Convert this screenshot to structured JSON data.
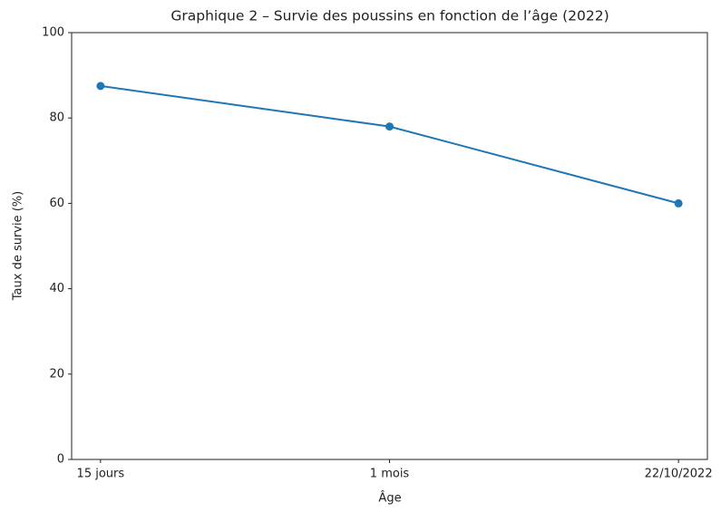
{
  "chart_data": {
    "type": "line",
    "title": "Graphique 2 – Survie des poussins en fonction de l’âge (2022)",
    "x_label": "Âge",
    "y_label": "Taux de survie (%)",
    "categories": [
      "15 jours",
      "1 mois",
      "22/10/2022"
    ],
    "series": [
      {
        "name": "Taux de survie",
        "color": "#1f77b4",
        "values": [
          87.5,
          78,
          60
        ]
      }
    ],
    "ylim": [
      0,
      100
    ],
    "yticks": [
      0,
      20,
      40,
      60,
      80,
      100
    ],
    "grid": false
  }
}
